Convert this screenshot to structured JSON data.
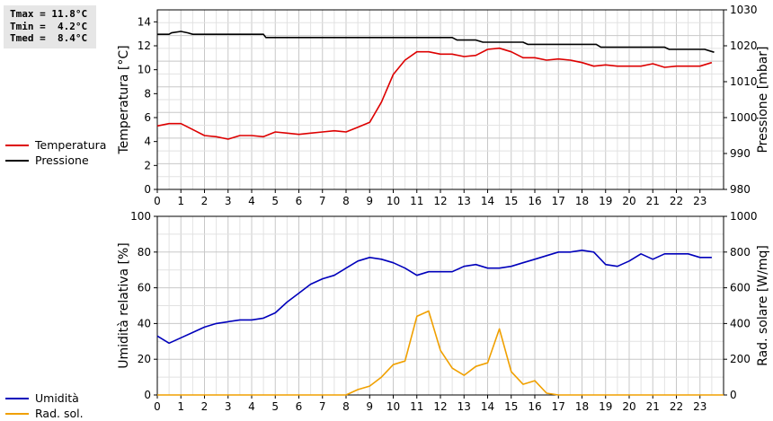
{
  "stats": {
    "tmax": "Tmax = 11.8°C",
    "tmin": "Tmin =  4.2°C",
    "tmed": "Tmed =  8.4°C"
  },
  "colors": {
    "temperature": "#dd0000",
    "pressure": "#000000",
    "humidity": "#0000bb",
    "radiation": "#f0a000"
  },
  "chart_data": [
    {
      "type": "line",
      "ylabel": "Temperatura [°C]",
      "y2label": "Pressione [mbar]",
      "xlim": [
        0,
        24
      ],
      "ylim": [
        0,
        15
      ],
      "y2lim": [
        980,
        1030
      ],
      "xticks": [
        "0",
        "1",
        "2",
        "3",
        "4",
        "5",
        "6",
        "7",
        "8",
        "9",
        "10",
        "11",
        "12",
        "13",
        "14",
        "15",
        "16",
        "17",
        "18",
        "19",
        "20",
        "21",
        "22",
        "23"
      ],
      "yticks": [
        "0",
        "2",
        "4",
        "6",
        "8",
        "10",
        "12",
        "14"
      ],
      "y2ticks": [
        "980",
        "990",
        "1000",
        "1010",
        "1020",
        "1030"
      ],
      "grid": true,
      "legend_position": "left",
      "series": [
        {
          "name": "Temperatura",
          "axis": "left",
          "x": [
            0,
            0.5,
            1,
            1.5,
            2,
            2.5,
            3,
            3.5,
            4,
            4.5,
            5,
            5.5,
            6,
            6.5,
            7,
            7.5,
            8,
            8.5,
            9,
            9.5,
            10,
            10.5,
            11,
            11.5,
            12,
            12.5,
            13,
            13.5,
            14,
            14.5,
            15,
            15.5,
            16,
            16.5,
            17,
            17.5,
            18,
            18.5,
            19,
            19.5,
            20,
            20.5,
            21,
            21.5,
            22,
            22.5,
            23,
            23.5
          ],
          "y": [
            5.3,
            5.5,
            5.5,
            5.0,
            4.5,
            4.4,
            4.2,
            4.5,
            4.5,
            4.4,
            4.8,
            4.7,
            4.6,
            4.7,
            4.8,
            4.9,
            4.8,
            5.2,
            5.6,
            7.3,
            9.6,
            10.8,
            11.5,
            11.5,
            11.3,
            11.3,
            11.1,
            11.2,
            11.7,
            11.8,
            11.5,
            11.0,
            11.0,
            10.8,
            10.9,
            10.8,
            10.6,
            10.3,
            10.4,
            10.3,
            10.3,
            10.3,
            10.5,
            10.2,
            10.3,
            10.3,
            10.3,
            10.6
          ]
        },
        {
          "name": "Pressione",
          "axis": "right",
          "x": [
            0,
            0.5,
            0.6,
            1,
            1.3,
            1.5,
            2,
            2.5,
            3,
            3.5,
            4,
            4.5,
            4.6,
            5,
            12.5,
            12.7,
            13,
            13.5,
            13.8,
            14,
            15,
            15.5,
            15.7,
            16,
            18,
            18.6,
            18.8,
            19,
            20.5,
            21,
            21.5,
            21.7,
            22,
            23.2,
            23.6
          ],
          "y": [
            1023.2,
            1023.2,
            1023.6,
            1024.0,
            1023.6,
            1023.2,
            1023.2,
            1023.2,
            1023.2,
            1023.2,
            1023.2,
            1023.2,
            1022.3,
            1022.3,
            1022.3,
            1021.6,
            1021.6,
            1021.6,
            1021.0,
            1021.0,
            1021.0,
            1021.0,
            1020.4,
            1020.4,
            1020.4,
            1020.4,
            1019.6,
            1019.6,
            1019.6,
            1019.6,
            1019.6,
            1019.0,
            1019.0,
            1019.0,
            1018.2
          ]
        }
      ]
    },
    {
      "type": "line",
      "ylabel": "Umidità relativa [%]",
      "y2label": "Rad. solare [W/mq]",
      "xlim": [
        0,
        24
      ],
      "ylim": [
        0,
        100
      ],
      "y2lim": [
        0,
        1000
      ],
      "xticks": [
        "0",
        "1",
        "2",
        "3",
        "4",
        "5",
        "6",
        "7",
        "8",
        "9",
        "10",
        "11",
        "12",
        "13",
        "14",
        "15",
        "16",
        "17",
        "18",
        "19",
        "20",
        "21",
        "22",
        "23"
      ],
      "yticks": [
        "0",
        "20",
        "40",
        "60",
        "80",
        "100"
      ],
      "y2ticks": [
        "0",
        "200",
        "400",
        "600",
        "800",
        "1000"
      ],
      "grid": true,
      "legend_position": "left",
      "series": [
        {
          "name": "Umidità",
          "axis": "left",
          "x": [
            0,
            0.5,
            1,
            1.5,
            2,
            2.5,
            3,
            3.5,
            4,
            4.5,
            5,
            5.5,
            6,
            6.5,
            7,
            7.5,
            8,
            8.5,
            9,
            9.5,
            10,
            10.5,
            11,
            11.5,
            12,
            12.5,
            13,
            13.5,
            14,
            14.5,
            15,
            15.5,
            16,
            16.5,
            17,
            17.5,
            18,
            18.5,
            19,
            19.5,
            20,
            20.5,
            21,
            21.5,
            22,
            22.5,
            23,
            23.5
          ],
          "y": [
            33,
            29,
            32,
            35,
            38,
            40,
            41,
            42,
            42,
            43,
            46,
            52,
            57,
            62,
            65,
            67,
            71,
            75,
            77,
            76,
            74,
            71,
            67,
            69,
            69,
            69,
            72,
            73,
            71,
            71,
            72,
            74,
            76,
            78,
            80,
            80,
            81,
            80,
            73,
            72,
            75,
            79,
            76,
            79,
            79,
            79,
            77,
            77
          ]
        },
        {
          "name": "Rad. sol.",
          "axis": "right",
          "x": [
            0,
            8,
            8.5,
            9,
            9.5,
            10,
            10.5,
            11,
            11.5,
            12,
            12.5,
            13,
            13.5,
            14,
            14.5,
            15,
            15.5,
            16,
            16.5,
            17,
            24
          ],
          "y": [
            0,
            0,
            30,
            50,
            100,
            170,
            190,
            440,
            470,
            250,
            150,
            110,
            160,
            180,
            370,
            130,
            60,
            80,
            10,
            0,
            0
          ]
        }
      ]
    }
  ]
}
